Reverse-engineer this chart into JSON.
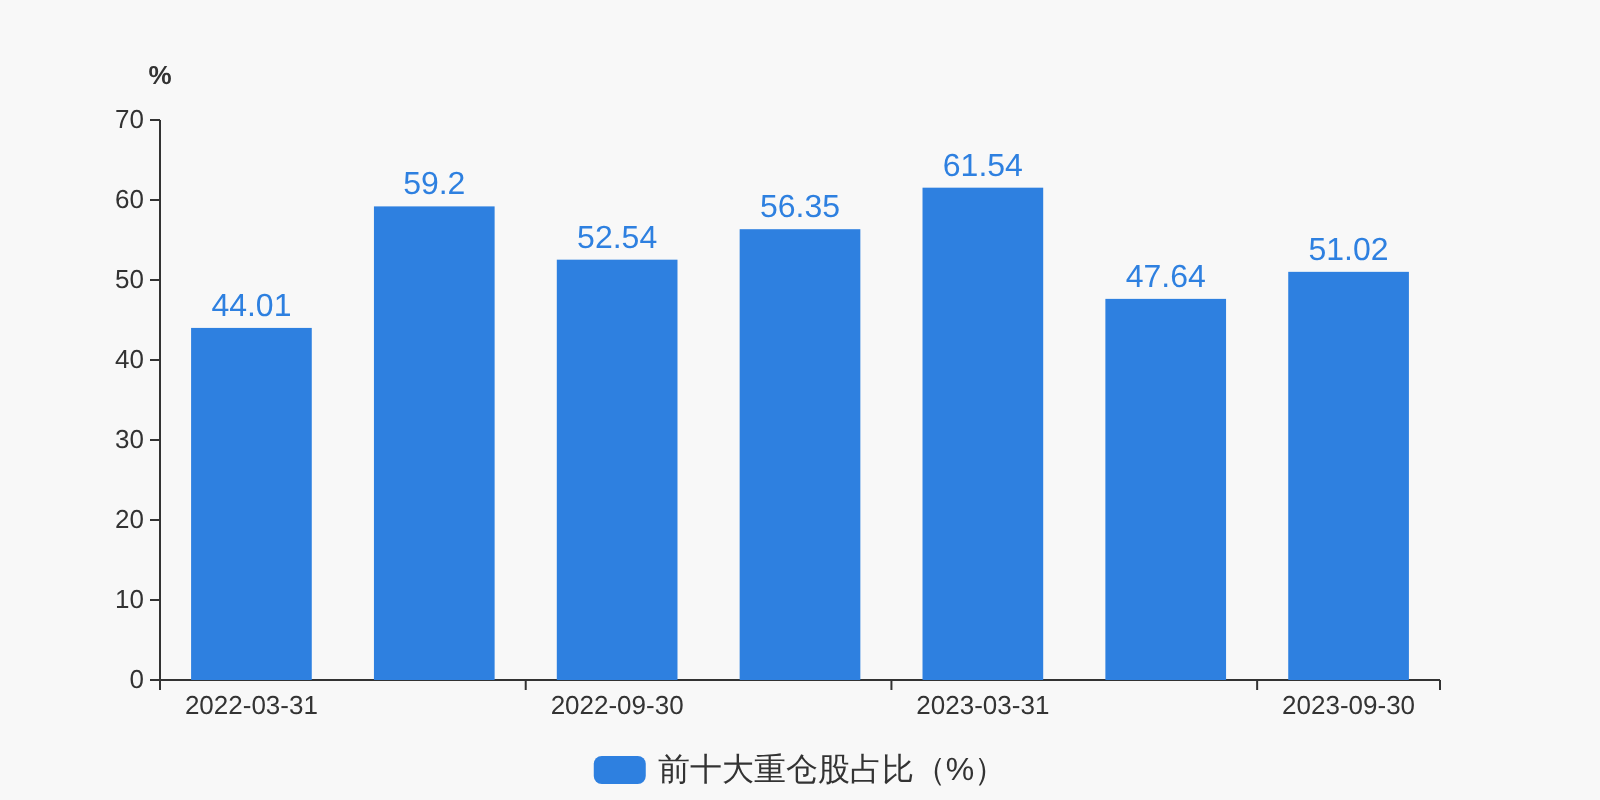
{
  "chart_data": {
    "type": "bar",
    "ylabel": "%",
    "categories": [
      "2022-03-31",
      null,
      "2022-09-30",
      null,
      "2023-03-31",
      null,
      "2023-09-30"
    ],
    "series": [
      {
        "name": "前十大重仓股占比（%）",
        "color": "#2e80e0",
        "values": [
          44.01,
          59.2,
          52.54,
          56.35,
          61.54,
          47.64,
          51.02
        ]
      }
    ],
    "ylim": [
      0,
      70
    ],
    "yticks": [
      0,
      10,
      20,
      30,
      40,
      50,
      60,
      70
    ],
    "data_labels": true,
    "legend": "bottom",
    "grid": false
  }
}
